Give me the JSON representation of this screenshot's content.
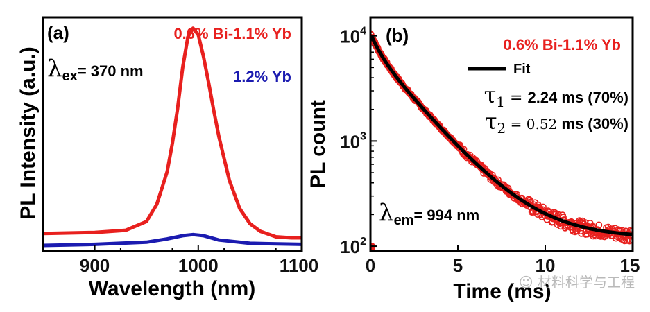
{
  "chart_data": [
    {
      "type": "line",
      "panel_label": "(a)",
      "title": "",
      "xlabel": "Wavelength (nm)",
      "ylabel": "PL Intensity (a.u.)",
      "xlim": [
        850,
        1100
      ],
      "ylim": [
        0,
        1.05
      ],
      "x_ticks": [
        900,
        1000,
        1100
      ],
      "y_ticks_shown": false,
      "annotation": {
        "prefix": "λ",
        "sub": "ex",
        "text": "= 370 nm"
      },
      "series": [
        {
          "name": "0.6% Bi-1.1% Yb",
          "color": "#e8201e",
          "x": [
            850,
            900,
            930,
            950,
            960,
            970,
            975,
            980,
            985,
            990,
            995,
            1000,
            1005,
            1010,
            1015,
            1020,
            1030,
            1040,
            1050,
            1060,
            1075,
            1090,
            1100
          ],
          "y": [
            0.055,
            0.06,
            0.07,
            0.11,
            0.19,
            0.34,
            0.47,
            0.63,
            0.82,
            0.96,
            1.0,
            0.97,
            0.87,
            0.75,
            0.62,
            0.5,
            0.3,
            0.17,
            0.1,
            0.065,
            0.04,
            0.035,
            0.035
          ]
        },
        {
          "name": "1.2% Yb",
          "color": "#1b1bb0",
          "x": [
            850,
            900,
            950,
            970,
            985,
            995,
            1005,
            1020,
            1050,
            1100
          ],
          "y": [
            0.0,
            0.005,
            0.015,
            0.03,
            0.045,
            0.05,
            0.045,
            0.025,
            0.01,
            0.005
          ]
        }
      ]
    },
    {
      "type": "scatter",
      "panel_label": "(b)",
      "title": "",
      "xlabel": "Time (ms)",
      "ylabel": "PL count",
      "xlim": [
        0,
        15
      ],
      "ylim": [
        90,
        15000
      ],
      "yscale": "log",
      "x_ticks": [
        0,
        5,
        10,
        15
      ],
      "y_ticks": [
        {
          "value": 100,
          "base": "10",
          "exp": "2"
        },
        {
          "value": 1000,
          "base": "10",
          "exp": "3"
        },
        {
          "value": 10000,
          "base": "10",
          "exp": "4"
        }
      ],
      "annotation": {
        "prefix": "λ",
        "sub": "em",
        "text": "= 994 nm"
      },
      "fit_params": [
        {
          "symbol": "τ",
          "sub": "1",
          "eq": " = ",
          "value": "2.24",
          "unit": " ms (70%)"
        },
        {
          "symbol": "τ",
          "sub": "2",
          "eq": " = ",
          "value": "0.52",
          "unit": " ms (30%)"
        }
      ],
      "series": [
        {
          "name": "0.6% Bi-1.1% Yb",
          "color": "#e8201e",
          "model": {
            "A1": 7300,
            "t1": 2.24,
            "A2": 3100,
            "t2": 0.52,
            "bg": 120
          },
          "x_range": [
            0,
            15
          ],
          "outliers": [
            {
              "x": 0.0,
              "y": 100
            },
            {
              "x": 0.0,
              "y": 92
            }
          ]
        },
        {
          "name": "Fit",
          "color": "#000000",
          "model": {
            "A1": 7300,
            "t1": 2.24,
            "A2": 3100,
            "t2": 0.52,
            "bg": 120
          },
          "x_range": [
            0.05,
            15
          ]
        }
      ]
    }
  ],
  "watermark": "材料科学与工程"
}
